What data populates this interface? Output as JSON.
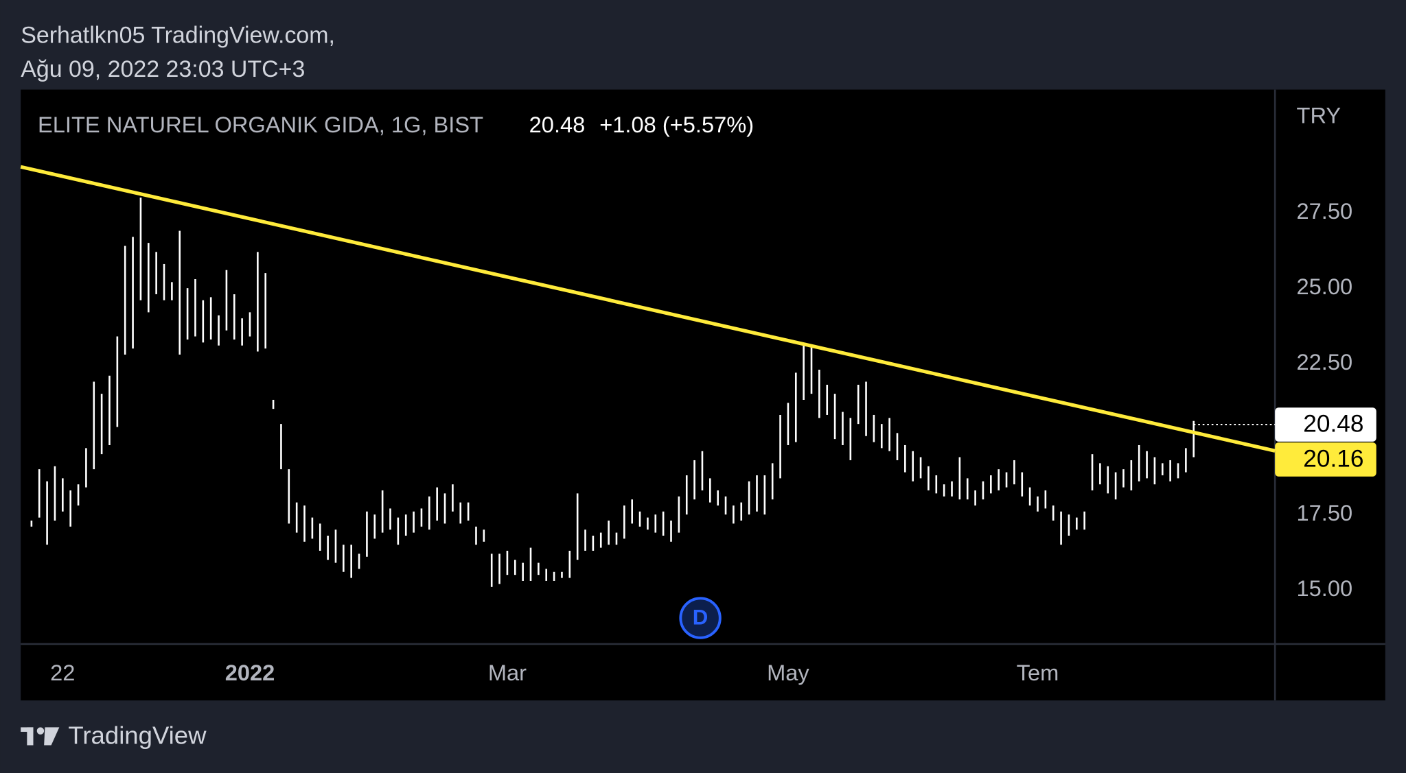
{
  "watermark": {
    "author": "Serhatlkn05 TradingView.com,",
    "timestamp": "Ağu 09, 2022 23:03 UTC+3"
  },
  "footer": {
    "brand": "TradingView"
  },
  "chart_data": {
    "type": "ohlc",
    "title": "ELITE NATUREL ORGANIK GIDA, 1G, BIST",
    "price": "20.48",
    "change": "+1.08 (+5.57%)",
    "currency": "TRY",
    "marker": "D",
    "color": "#ffffff",
    "categories": [
      null,
      null,
      null,
      null,
      "22",
      null,
      null,
      null,
      null,
      null,
      null,
      null,
      null,
      null,
      null,
      null,
      null,
      null,
      null,
      null,
      null,
      null,
      null,
      null,
      null,
      null,
      null,
      null,
      "2022",
      null,
      null,
      null,
      null,
      null,
      null,
      null,
      null,
      null,
      null,
      null,
      null,
      null,
      null,
      null,
      null,
      null,
      null,
      null,
      null,
      null,
      null,
      null,
      null,
      null,
      null,
      null,
      null,
      null,
      null,
      null,
      null,
      "Mar",
      null,
      null,
      null,
      null,
      null,
      null,
      null,
      null,
      null,
      null,
      null,
      null,
      null,
      null,
      null,
      null,
      null,
      null,
      null,
      null,
      null,
      null,
      null,
      null,
      null,
      null,
      null,
      null,
      null,
      null,
      null,
      null,
      null,
      null,
      null,
      "May",
      null,
      null,
      null,
      null,
      null,
      null,
      null,
      null,
      null,
      null,
      null,
      null,
      null,
      null,
      null,
      null,
      null,
      null,
      null,
      null,
      null,
      null,
      null,
      null,
      null,
      null,
      null,
      null,
      null,
      null,
      null,
      "Tem",
      null,
      null,
      null,
      null,
      null,
      null,
      null,
      null,
      null,
      null,
      null,
      null,
      null,
      null,
      null,
      null,
      null,
      null,
      null,
      null
    ],
    "high": [
      17.3,
      19.0,
      18.6,
      19.1,
      18.7,
      18.3,
      18.5,
      19.7,
      21.9,
      21.5,
      22.1,
      23.4,
      26.4,
      26.7,
      28.0,
      26.5,
      26.2,
      25.8,
      25.2,
      26.9,
      25.0,
      25.3,
      24.6,
      24.7,
      24.1,
      25.6,
      24.8,
      24.0,
      24.2,
      26.2,
      25.5,
      21.3,
      20.5,
      19.0,
      17.9,
      17.8,
      17.4,
      17.2,
      16.8,
      17.0,
      16.5,
      16.5,
      16.2,
      17.6,
      17.5,
      18.3,
      17.7,
      17.4,
      17.5,
      17.6,
      17.7,
      18.1,
      18.4,
      18.2,
      18.5,
      17.9,
      17.9,
      17.1,
      17.0,
      16.2,
      16.2,
      16.3,
      16.0,
      15.9,
      16.4,
      15.9,
      15.7,
      15.6,
      15.6,
      16.3,
      18.2,
      17.0,
      16.8,
      16.9,
      17.3,
      16.9,
      17.8,
      18.0,
      17.6,
      17.4,
      17.5,
      17.6,
      17.3,
      18.1,
      18.8,
      19.3,
      19.6,
      18.7,
      18.3,
      18.1,
      17.8,
      17.9,
      18.6,
      18.8,
      18.8,
      19.2,
      20.8,
      21.2,
      22.2,
      23.1,
      23.1,
      22.3,
      21.8,
      21.5,
      20.9,
      20.7,
      21.8,
      21.9,
      20.8,
      20.5,
      20.7,
      20.2,
      19.8,
      19.6,
      19.4,
      19.1,
      18.8,
      18.5,
      18.6,
      19.4,
      18.7,
      18.3,
      18.6,
      18.8,
      19.0,
      18.9,
      19.3,
      18.9,
      18.4,
      18.1,
      18.3,
      17.8,
      17.6,
      17.5,
      17.4,
      17.6,
      19.5,
      19.2,
      19.1,
      18.9,
      19.0,
      19.3,
      19.8,
      19.6,
      19.4,
      19.2,
      19.3,
      19.2,
      19.7,
      20.6
    ],
    "low": [
      17.1,
      17.4,
      16.5,
      17.3,
      17.6,
      17.1,
      17.8,
      18.4,
      19.0,
      19.5,
      19.8,
      20.4,
      22.8,
      23.0,
      24.6,
      24.2,
      24.8,
      24.6,
      24.6,
      22.8,
      23.3,
      23.4,
      23.2,
      23.3,
      23.1,
      23.6,
      23.3,
      23.1,
      23.4,
      22.9,
      23.0,
      21.0,
      19.0,
      17.2,
      16.9,
      16.6,
      16.7,
      16.3,
      16.0,
      15.9,
      15.6,
      15.4,
      15.7,
      16.1,
      16.7,
      16.9,
      17.0,
      16.5,
      16.8,
      16.9,
      17.1,
      17.0,
      17.3,
      17.2,
      17.6,
      17.2,
      17.3,
      16.5,
      16.6,
      15.1,
      15.2,
      15.5,
      15.5,
      15.3,
      15.3,
      15.5,
      15.3,
      15.3,
      15.4,
      15.4,
      16.0,
      16.3,
      16.3,
      16.4,
      16.5,
      16.5,
      16.7,
      17.2,
      17.1,
      17.0,
      16.9,
      16.8,
      16.6,
      16.9,
      17.5,
      18.0,
      18.3,
      17.9,
      17.8,
      17.5,
      17.2,
      17.3,
      17.5,
      17.6,
      17.5,
      18.0,
      18.7,
      19.8,
      19.9,
      21.3,
      21.5,
      20.7,
      20.8,
      20.0,
      19.8,
      19.3,
      20.5,
      20.1,
      19.9,
      19.7,
      19.6,
      19.3,
      18.9,
      18.6,
      18.7,
      18.3,
      18.2,
      18.1,
      18.1,
      18.0,
      18.0,
      17.8,
      18.0,
      18.2,
      18.3,
      18.4,
      18.5,
      18.1,
      17.8,
      17.6,
      17.7,
      17.3,
      16.5,
      16.8,
      17.0,
      17.0,
      18.3,
      18.5,
      18.2,
      18.0,
      18.4,
      18.3,
      18.6,
      18.7,
      18.5,
      18.8,
      18.6,
      18.7,
      18.9,
      19.4
    ],
    "trendline": {
      "start": 29.02,
      "end": 19.61,
      "color": "#ffeb3b"
    },
    "last_price": {
      "value": 20.48,
      "label": "20.48"
    },
    "trend_price": {
      "value": 20.16,
      "label": "20.16"
    },
    "ylim": [
      13.21,
      31.58
    ],
    "yticks": [
      {
        "value": 15,
        "label": "15.00"
      },
      {
        "value": 17.5,
        "label": "17.50"
      },
      {
        "value": 22.5,
        "label": "22.50"
      },
      {
        "value": 25,
        "label": "25.00"
      },
      {
        "value": 27.5,
        "label": "27.50"
      }
    ]
  }
}
